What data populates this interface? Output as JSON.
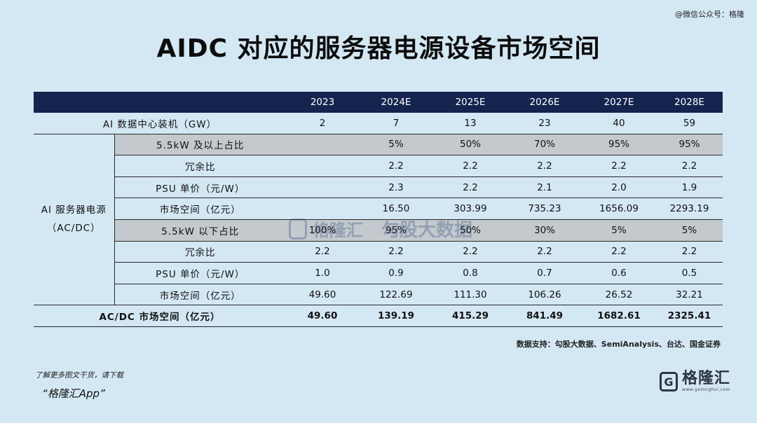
{
  "watermark_top": "@微信公众号：格隆",
  "title": "AIDC 对应的服务器电源设备市场空间",
  "table": {
    "years": [
      "2023",
      "2024E",
      "2025E",
      "2026E",
      "2027E",
      "2028E"
    ],
    "install_row": {
      "label": "AI 数据中心装机（GW）",
      "values": [
        "2",
        "7",
        "13",
        "23",
        "40",
        "59"
      ]
    },
    "group_label_line1": "AI 服务器电源",
    "group_label_line2": "（AC/DC）",
    "group_rows": [
      {
        "label": "5.5kW 及以上占比",
        "shade": true,
        "values": [
          "",
          "5%",
          "50%",
          "70%",
          "95%",
          "95%"
        ]
      },
      {
        "label": "冗余比",
        "shade": false,
        "values": [
          "",
          "2.2",
          "2.2",
          "2.2",
          "2.2",
          "2.2"
        ]
      },
      {
        "label": "PSU 单价（元/W）",
        "shade": false,
        "values": [
          "",
          "2.3",
          "2.2",
          "2.1",
          "2.0",
          "1.9"
        ]
      },
      {
        "label": "市场空间（亿元）",
        "shade": false,
        "values": [
          "",
          "16.50",
          "303.99",
          "735.23",
          "1656.09",
          "2293.19"
        ]
      },
      {
        "label": "5.5kW 以下占比",
        "shade": true,
        "values": [
          "100%",
          "95%",
          "50%",
          "30%",
          "5%",
          "5%"
        ]
      },
      {
        "label": "冗余比",
        "shade": false,
        "values": [
          "2.2",
          "2.2",
          "2.2",
          "2.2",
          "2.2",
          "2.2"
        ]
      },
      {
        "label": "PSU 单价（元/W）",
        "shade": false,
        "values": [
          "1.0",
          "0.9",
          "0.8",
          "0.7",
          "0.6",
          "0.5"
        ]
      },
      {
        "label": "市场空间（亿元）",
        "shade": false,
        "values": [
          "49.60",
          "122.69",
          "111.30",
          "106.26",
          "26.52",
          "32.21"
        ]
      }
    ],
    "total_row": {
      "label": "AC/DC 市场空间（亿元）",
      "values": [
        "49.60",
        "139.19",
        "415.29",
        "841.49",
        "1682.61",
        "2325.41"
      ]
    }
  },
  "source": "数据支持：勾股大数据、SemiAnalysis、台达、国金证券",
  "footer_note": "了解更多图文干货，请下载",
  "footer_app": "“格隆汇App”",
  "logo": {
    "mark": "G",
    "name": "格隆汇",
    "url": "www.gelonghui.com"
  },
  "watermark_mid": {
    "name": "格隆汇",
    "sub": "勾股大数据"
  }
}
